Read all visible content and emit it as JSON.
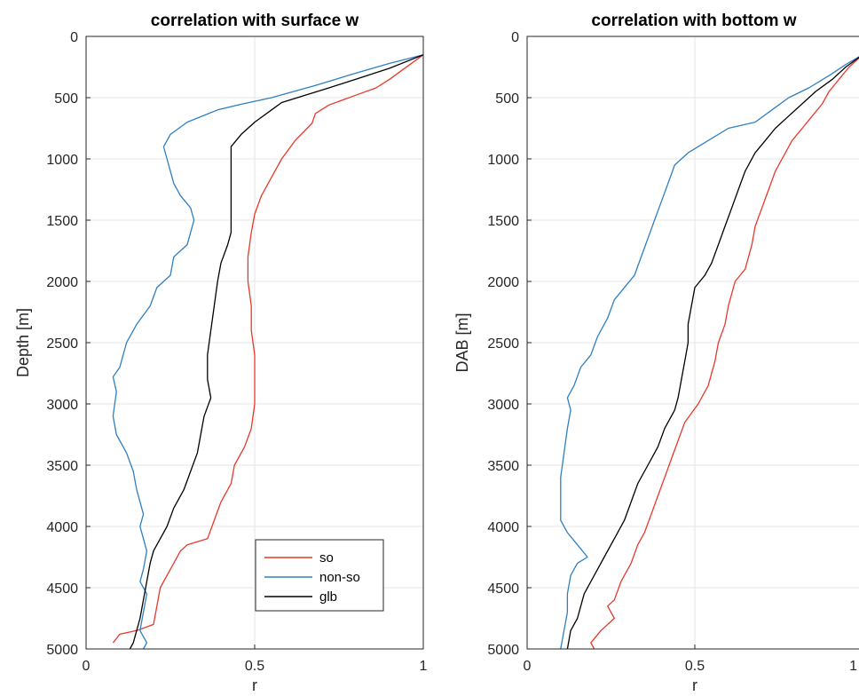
{
  "chart_data": [
    {
      "type": "line",
      "title": "correlation with surface w",
      "xlabel": "r",
      "ylabel": "Depth [m]",
      "xlim": [
        0,
        1
      ],
      "ylim": [
        0,
        5000
      ],
      "y_reversed": true,
      "grid": true,
      "x_ticks": [
        "0",
        "0.5",
        "1"
      ],
      "y_ticks": [
        "0",
        "500",
        "1000",
        "1500",
        "2000",
        "2500",
        "3000",
        "3500",
        "4000",
        "4500",
        "5000"
      ],
      "legend": {
        "position": "bottom-right",
        "entries": [
          "so",
          "non-so",
          "glb"
        ]
      },
      "series": [
        {
          "name": "so",
          "color": "#e8382a",
          "points": [
            [
              1.0,
              150
            ],
            [
              0.9,
              350
            ],
            [
              0.86,
              420
            ],
            [
              0.8,
              480
            ],
            [
              0.72,
              560
            ],
            [
              0.68,
              630
            ],
            [
              0.67,
              710
            ],
            [
              0.62,
              850
            ],
            [
              0.58,
              1000
            ],
            [
              0.55,
              1150
            ],
            [
              0.52,
              1300
            ],
            [
              0.5,
              1450
            ],
            [
              0.49,
              1600
            ],
            [
              0.48,
              1800
            ],
            [
              0.48,
              2000
            ],
            [
              0.49,
              2200
            ],
            [
              0.49,
              2400
            ],
            [
              0.5,
              2600
            ],
            [
              0.5,
              2800
            ],
            [
              0.5,
              3000
            ],
            [
              0.49,
              3200
            ],
            [
              0.47,
              3350
            ],
            [
              0.44,
              3500
            ],
            [
              0.43,
              3650
            ],
            [
              0.4,
              3800
            ],
            [
              0.38,
              3950
            ],
            [
              0.36,
              4100
            ],
            [
              0.3,
              4150
            ],
            [
              0.28,
              4200
            ],
            [
              0.26,
              4300
            ],
            [
              0.24,
              4400
            ],
            [
              0.22,
              4500
            ],
            [
              0.21,
              4650
            ],
            [
              0.2,
              4800
            ],
            [
              0.15,
              4850
            ],
            [
              0.1,
              4880
            ],
            [
              0.08,
              4950
            ]
          ]
        },
        {
          "name": "non-so",
          "color": "#2f7fc1",
          "points": [
            [
              1.0,
              150
            ],
            [
              0.9,
              220
            ],
            [
              0.8,
              300
            ],
            [
              0.68,
              400
            ],
            [
              0.55,
              500
            ],
            [
              0.45,
              560
            ],
            [
              0.39,
              600
            ],
            [
              0.3,
              700
            ],
            [
              0.25,
              800
            ],
            [
              0.23,
              900
            ],
            [
              0.24,
              1000
            ],
            [
              0.25,
              1100
            ],
            [
              0.26,
              1200
            ],
            [
              0.28,
              1300
            ],
            [
              0.31,
              1400
            ],
            [
              0.32,
              1500
            ],
            [
              0.31,
              1600
            ],
            [
              0.3,
              1700
            ],
            [
              0.26,
              1800
            ],
            [
              0.25,
              1950
            ],
            [
              0.21,
              2050
            ],
            [
              0.19,
              2200
            ],
            [
              0.15,
              2350
            ],
            [
              0.12,
              2500
            ],
            [
              0.1,
              2700
            ],
            [
              0.08,
              2780
            ],
            [
              0.09,
              2900
            ],
            [
              0.08,
              3100
            ],
            [
              0.09,
              3250
            ],
            [
              0.12,
              3400
            ],
            [
              0.14,
              3550
            ],
            [
              0.15,
              3700
            ],
            [
              0.16,
              3800
            ],
            [
              0.17,
              3900
            ],
            [
              0.16,
              4000
            ],
            [
              0.17,
              4100
            ],
            [
              0.18,
              4200
            ],
            [
              0.17,
              4350
            ],
            [
              0.16,
              4450
            ],
            [
              0.18,
              4550
            ],
            [
              0.17,
              4700
            ],
            [
              0.16,
              4850
            ],
            [
              0.18,
              4950
            ],
            [
              0.17,
              5000
            ]
          ]
        },
        {
          "name": "glb",
          "color": "#000000",
          "points": [
            [
              1.0,
              150
            ],
            [
              0.9,
              260
            ],
            [
              0.8,
              350
            ],
            [
              0.72,
              420
            ],
            [
              0.65,
              480
            ],
            [
              0.58,
              540
            ],
            [
              0.55,
              600
            ],
            [
              0.5,
              700
            ],
            [
              0.46,
              800
            ],
            [
              0.43,
              900
            ],
            [
              0.43,
              1000
            ],
            [
              0.43,
              1200
            ],
            [
              0.43,
              1400
            ],
            [
              0.43,
              1600
            ],
            [
              0.42,
              1700
            ],
            [
              0.4,
              1850
            ],
            [
              0.39,
              2000
            ],
            [
              0.38,
              2200
            ],
            [
              0.37,
              2400
            ],
            [
              0.36,
              2600
            ],
            [
              0.36,
              2800
            ],
            [
              0.37,
              2950
            ],
            [
              0.35,
              3100
            ],
            [
              0.34,
              3250
            ],
            [
              0.33,
              3400
            ],
            [
              0.31,
              3550
            ],
            [
              0.29,
              3700
            ],
            [
              0.26,
              3850
            ],
            [
              0.24,
              4000
            ],
            [
              0.22,
              4100
            ],
            [
              0.2,
              4200
            ],
            [
              0.19,
              4300
            ],
            [
              0.18,
              4450
            ],
            [
              0.17,
              4600
            ],
            [
              0.16,
              4750
            ],
            [
              0.15,
              4850
            ],
            [
              0.14,
              4950
            ],
            [
              0.13,
              5000
            ]
          ]
        }
      ]
    },
    {
      "type": "line",
      "title": "correlation with bottom w",
      "xlabel": "r",
      "ylabel": "DAB [m]",
      "xlim": [
        0,
        1
      ],
      "ylim": [
        0,
        5000
      ],
      "y_reversed": true,
      "grid": true,
      "x_ticks": [
        "0",
        "0.5",
        "1"
      ],
      "y_ticks": [
        "0",
        "500",
        "1000",
        "1500",
        "2000",
        "2500",
        "3000",
        "3500",
        "4000",
        "4500",
        "5000"
      ],
      "series": [
        {
          "name": "so",
          "color": "#e8382a",
          "points": [
            [
              1.0,
              150
            ],
            [
              0.96,
              250
            ],
            [
              0.93,
              350
            ],
            [
              0.9,
              450
            ],
            [
              0.88,
              550
            ],
            [
              0.85,
              650
            ],
            [
              0.82,
              750
            ],
            [
              0.79,
              850
            ],
            [
              0.76,
              1000
            ],
            [
              0.74,
              1100
            ],
            [
              0.72,
              1250
            ],
            [
              0.7,
              1400
            ],
            [
              0.68,
              1550
            ],
            [
              0.67,
              1700
            ],
            [
              0.65,
              1900
            ],
            [
              0.62,
              2000
            ],
            [
              0.6,
              2200
            ],
            [
              0.59,
              2350
            ],
            [
              0.57,
              2500
            ],
            [
              0.56,
              2650
            ],
            [
              0.54,
              2850
            ],
            [
              0.51,
              3000
            ],
            [
              0.47,
              3150
            ],
            [
              0.45,
              3300
            ],
            [
              0.43,
              3450
            ],
            [
              0.41,
              3600
            ],
            [
              0.39,
              3750
            ],
            [
              0.37,
              3900
            ],
            [
              0.35,
              4050
            ],
            [
              0.33,
              4150
            ],
            [
              0.31,
              4300
            ],
            [
              0.28,
              4450
            ],
            [
              0.26,
              4600
            ],
            [
              0.24,
              4650
            ],
            [
              0.26,
              4750
            ],
            [
              0.22,
              4850
            ],
            [
              0.19,
              4950
            ],
            [
              0.2,
              5000
            ]
          ]
        },
        {
          "name": "non-so",
          "color": "#2f7fc1",
          "points": [
            [
              1.0,
              150
            ],
            [
              0.95,
              230
            ],
            [
              0.9,
              320
            ],
            [
              0.84,
              420
            ],
            [
              0.78,
              500
            ],
            [
              0.73,
              600
            ],
            [
              0.68,
              700
            ],
            [
              0.6,
              750
            ],
            [
              0.54,
              850
            ],
            [
              0.48,
              950
            ],
            [
              0.44,
              1050
            ],
            [
              0.42,
              1200
            ],
            [
              0.4,
              1350
            ],
            [
              0.38,
              1500
            ],
            [
              0.36,
              1650
            ],
            [
              0.34,
              1800
            ],
            [
              0.32,
              1950
            ],
            [
              0.29,
              2050
            ],
            [
              0.26,
              2150
            ],
            [
              0.24,
              2300
            ],
            [
              0.21,
              2450
            ],
            [
              0.19,
              2600
            ],
            [
              0.16,
              2700
            ],
            [
              0.14,
              2850
            ],
            [
              0.12,
              2950
            ],
            [
              0.13,
              3050
            ],
            [
              0.12,
              3200
            ],
            [
              0.11,
              3400
            ],
            [
              0.1,
              3600
            ],
            [
              0.1,
              3800
            ],
            [
              0.1,
              3950
            ],
            [
              0.12,
              4050
            ],
            [
              0.15,
              4150
            ],
            [
              0.18,
              4250
            ],
            [
              0.15,
              4300
            ],
            [
              0.13,
              4400
            ],
            [
              0.12,
              4550
            ],
            [
              0.12,
              4700
            ],
            [
              0.11,
              4850
            ],
            [
              0.1,
              5000
            ]
          ]
        },
        {
          "name": "glb",
          "color": "#000000",
          "points": [
            [
              1.0,
              150
            ],
            [
              0.95,
              250
            ],
            [
              0.91,
              350
            ],
            [
              0.86,
              450
            ],
            [
              0.82,
              550
            ],
            [
              0.78,
              650
            ],
            [
              0.74,
              750
            ],
            [
              0.71,
              850
            ],
            [
              0.68,
              950
            ],
            [
              0.65,
              1100
            ],
            [
              0.63,
              1250
            ],
            [
              0.61,
              1400
            ],
            [
              0.59,
              1550
            ],
            [
              0.57,
              1700
            ],
            [
              0.55,
              1850
            ],
            [
              0.53,
              1950
            ],
            [
              0.5,
              2050
            ],
            [
              0.49,
              2200
            ],
            [
              0.48,
              2350
            ],
            [
              0.48,
              2500
            ],
            [
              0.47,
              2650
            ],
            [
              0.46,
              2800
            ],
            [
              0.45,
              2950
            ],
            [
              0.44,
              3050
            ],
            [
              0.41,
              3200
            ],
            [
              0.39,
              3350
            ],
            [
              0.36,
              3500
            ],
            [
              0.33,
              3650
            ],
            [
              0.31,
              3800
            ],
            [
              0.29,
              3950
            ],
            [
              0.26,
              4100
            ],
            [
              0.23,
              4250
            ],
            [
              0.2,
              4400
            ],
            [
              0.17,
              4550
            ],
            [
              0.16,
              4650
            ],
            [
              0.15,
              4750
            ],
            [
              0.13,
              4850
            ],
            [
              0.12,
              5000
            ]
          ]
        }
      ]
    }
  ]
}
